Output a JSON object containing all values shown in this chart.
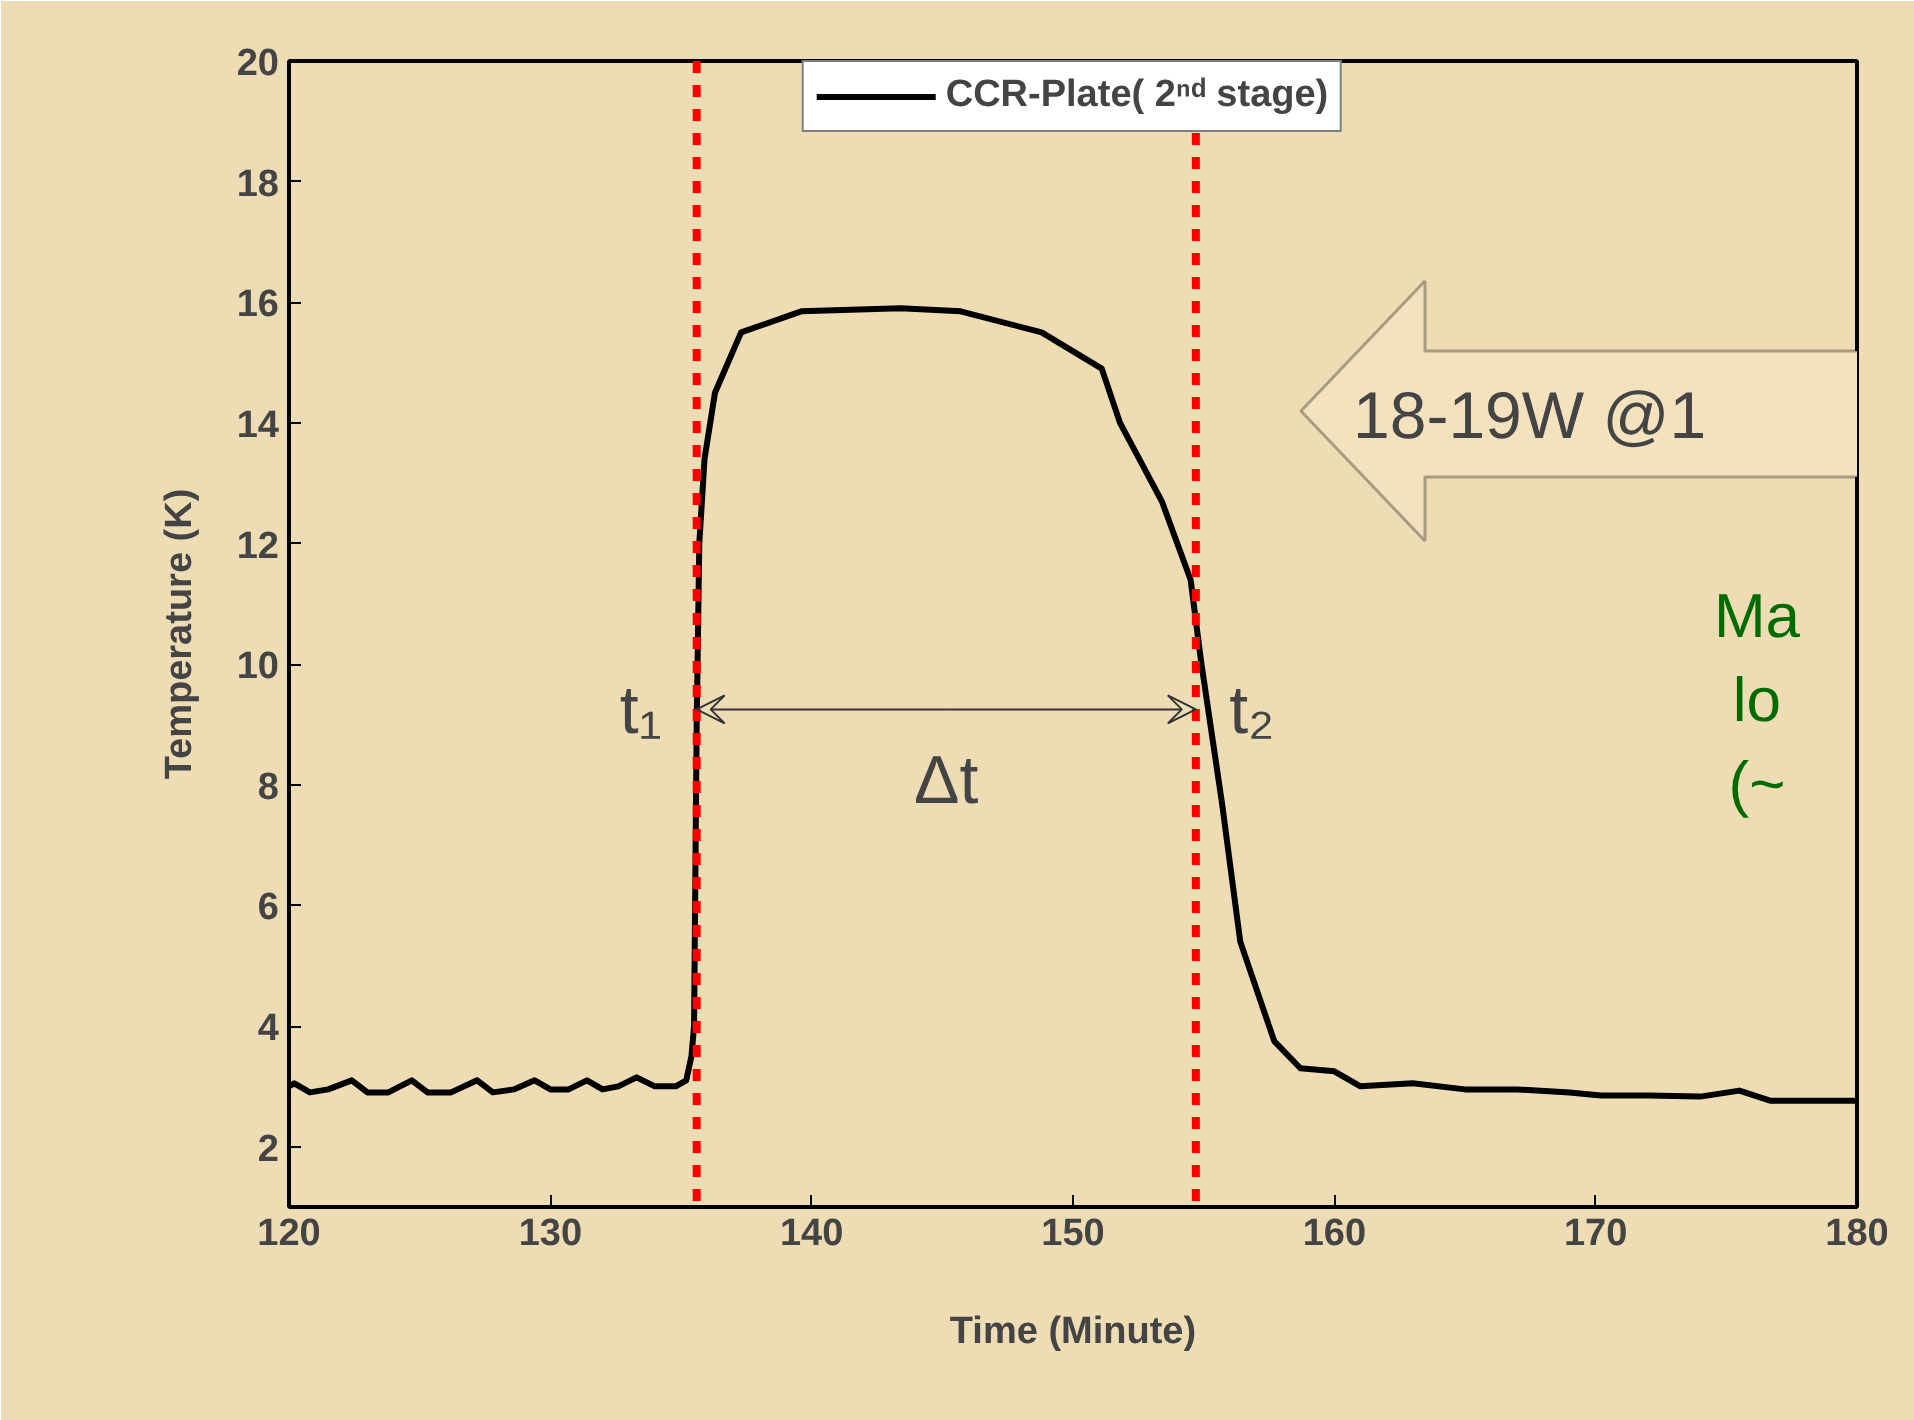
{
  "chart_data": {
    "type": "line",
    "xlabel": "Time (Minute)",
    "ylabel": "Temperature (K)",
    "xlim": [
      120,
      180
    ],
    "xticks": [
      120,
      130,
      140,
      150,
      160,
      170,
      180
    ],
    "ylim": [
      1,
      20
    ],
    "yticks": [
      2,
      4,
      6,
      8,
      10,
      12,
      14,
      16,
      18,
      20
    ],
    "grid": false,
    "legend": "top",
    "line_style": "solid",
    "series": [
      {
        "name": "CCR-Plate( 2ⁿᵈ stage)",
        "color": "#000000",
        "x": [
          120,
          120.2,
          120.8,
          121.5,
          122.4,
          123.0,
          123.8,
          124.7,
          125.3,
          126.2,
          127.2,
          127.8,
          128.6,
          129.4,
          130.0,
          130.7,
          131.4,
          132.0,
          132.6,
          133.3,
          134.0,
          134.8,
          135.2,
          135.4,
          135.5,
          135.6,
          135.7,
          135.9,
          136.3,
          137.3,
          139.6,
          143.4,
          145.7,
          148.8,
          151.1,
          151.8,
          153.4,
          154.5,
          154.9,
          155.7,
          156.4,
          157.7,
          158.7,
          160,
          161,
          163,
          165,
          167,
          169,
          170.2,
          172,
          174,
          175.5,
          176.7,
          178,
          180
        ],
        "values": [
          3.0,
          3.05,
          2.9,
          2.95,
          3.1,
          2.9,
          2.9,
          3.1,
          2.9,
          2.9,
          3.1,
          2.9,
          2.95,
          3.1,
          2.95,
          2.95,
          3.1,
          2.95,
          3.0,
          3.15,
          3.0,
          3.0,
          3.1,
          3.5,
          4.0,
          9.0,
          12.0,
          13.4,
          14.5,
          15.5,
          15.85,
          15.9,
          15.85,
          15.5,
          14.9,
          14.0,
          12.7,
          11.4,
          10.05,
          7.7,
          5.4,
          3.75,
          3.3,
          3.25,
          3.0,
          3.05,
          2.95,
          2.95,
          2.9,
          2.85,
          2.85,
          2.83,
          2.93,
          2.76,
          2.76,
          2.76
        ]
      }
    ],
    "ref_lines": [
      {
        "axis": "x",
        "value": 135.6,
        "color": "#ff0000",
        "line_style": "dashed"
      },
      {
        "axis": "x",
        "value": 154.7,
        "color": "#ff0000",
        "line_style": "dashed"
      }
    ],
    "annotations": [
      "t₁",
      {
        "text": "Δt",
        "x": 154.7,
        "y": 9.25
      },
      "t₂",
      "18-19W @1",
      "Ma\nlo\n(~"
    ]
  }
}
